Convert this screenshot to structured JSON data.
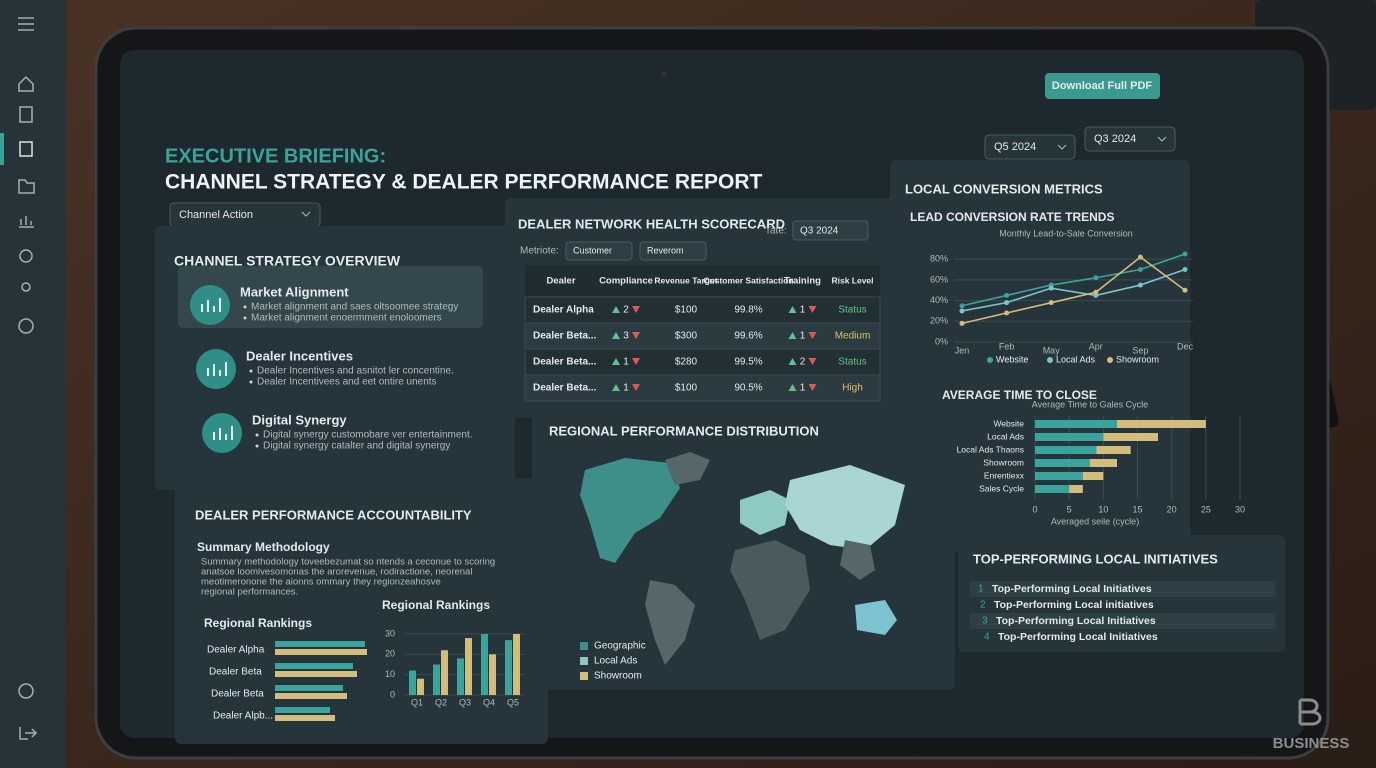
{
  "header": {
    "eyebrow": "EXECUTIVE BRIEFING:",
    "title": "CHANNEL STRATEGY & DEALER PERFORMANCE REPORT",
    "download": "Download Full PDF",
    "periods": [
      "Q5 2024",
      "Q3 2024"
    ],
    "filter": "Channel Action"
  },
  "strategy": {
    "title": "CHANNEL STRATEGY OVERVIEW",
    "items": [
      {
        "title": "Market Alignment",
        "bullets": [
          "Market alignment and saes oltsoomee strategy",
          "Market alignment enoermment enoloomers"
        ]
      },
      {
        "title": "Dealer Incentives",
        "bullets": [
          "Dealer Incentives and asnitot ler concentine.",
          "Dealer Incentivees and eet ontire unents"
        ]
      },
      {
        "title": "Digital Synergy",
        "bullets": [
          "Digital synergy customobare ver entertainment.",
          "Digital synergy catalter and digital synergy"
        ]
      }
    ]
  },
  "scorecard": {
    "title": "DEALER NETWORK HEALTH SCORECARD",
    "metric_label": "Metriote:",
    "metric_options": [
      "Customer",
      "Reverom"
    ],
    "date_label": "Tate:",
    "date": "Q3 2024",
    "columns": [
      "Dealer",
      "Compliance",
      "Revenue Target",
      "Customer Satisfaction",
      "Training",
      "Risk Level"
    ],
    "rows": [
      [
        "Dealer Alpha",
        2,
        "$100",
        "99.8%",
        1,
        "Status"
      ],
      [
        "Dealer Beta...",
        3,
        "$300",
        "99.6%",
        1,
        "Medium"
      ],
      [
        "Dealer Beta...",
        1,
        "$280",
        "99.5%",
        2,
        "Status"
      ],
      [
        "Dealer Beta...",
        1,
        "$100",
        "90.5%",
        1,
        "High"
      ]
    ],
    "risk_colors": [
      "#5fc28a",
      "#e0c060",
      "#5fc28a",
      "#e0c060"
    ]
  },
  "accountability": {
    "title": "DEALER PERFORMANCE ACCOUNTABILITY",
    "subtitle": "Summary Methodology",
    "text": [
      "Summary methodology toveebezumat so ntends a ceconue to scoring",
      "anatsoe loomivesomonas the arorevenue, rodiractione, neorenal",
      "meotimeronone the aionns ommary they regionzeahosve",
      "regional performances."
    ]
  },
  "map": {
    "title": "REGIONAL PERFORMANCE DISTRIBUTION",
    "legend": [
      {
        "name": "Geographic",
        "color": "#3e8f8a"
      },
      {
        "name": "Local Ads",
        "color": "#8fc9c4"
      },
      {
        "name": "Showroom",
        "color": "#d4bd7c"
      }
    ]
  },
  "conversion": {
    "title": "LOCAL CONVERSION METRICS"
  },
  "initiatives": {
    "title": "TOP-PERFORMING LOCAL INITIATIVES",
    "items": [
      {
        "rank": 1,
        "label": "Top-Performing Local Initiatives"
      },
      {
        "rank": 2,
        "label": "Top-Performing Local initiatives"
      },
      {
        "rank": 3,
        "label": "Top-Performing Local Initiatives"
      },
      {
        "rank": 4,
        "label": "Top-Performing Local Initiatives"
      }
    ]
  },
  "brand": "BUSINESS",
  "chart_data": [
    {
      "type": "line",
      "title": "LEAD CONVERSION RATE TRENDS",
      "subtitle": "Monthly Lead-to-Sale Conversion",
      "categories": [
        "Jen",
        "Feb",
        "May",
        "Apr",
        "Sep",
        "Dec"
      ],
      "series": [
        {
          "name": "Website",
          "color": "#3aa39b",
          "values": [
            35,
            45,
            55,
            62,
            70,
            85
          ]
        },
        {
          "name": "Local Ads",
          "color": "#7cc3d0",
          "values": [
            30,
            38,
            52,
            45,
            55,
            70
          ]
        },
        {
          "name": "Showroom",
          "color": "#d4bd7c",
          "values": [
            18,
            28,
            38,
            48,
            82,
            50
          ]
        }
      ],
      "ylim": [
        0,
        85
      ],
      "yticks": [
        {
          "value": 0,
          "label": "0%"
        },
        {
          "value": 20,
          "label": "20%"
        },
        {
          "value": 40,
          "label": "40%"
        },
        {
          "value": 60,
          "label": "60%"
        },
        {
          "value": 80,
          "label": "80%"
        }
      ],
      "grid": true
    },
    {
      "type": "stacked-hbar",
      "title": "AVERAGE TIME TO CLOSE",
      "subtitle": "Average Time to Gales Cycle",
      "xlabel": "Averaged seile (cycle)",
      "categories": [
        "Website",
        "Local Ads",
        "Local Ads Thaons",
        "Showroom",
        "Enrentiexx",
        "Sales Cycle"
      ],
      "series": [
        {
          "color": "#3aa39b",
          "values": [
            12,
            10,
            9,
            8,
            7,
            5
          ]
        },
        {
          "color": "#d4bd7c",
          "values": [
            13,
            8,
            5,
            4,
            3,
            2
          ]
        }
      ],
      "xlim": [
        0,
        30
      ],
      "xticks": [
        0,
        5,
        10,
        15,
        20,
        25,
        30
      ],
      "grid": true
    },
    {
      "type": "hbar",
      "title": "Regional Rankings",
      "categories": [
        "Dealer Alpha",
        "Dealer Beta",
        "Dealer Beta",
        "Dealer Alpb..."
      ],
      "series": [
        {
          "color": "#3aa39b",
          "values": [
            90,
            78,
            68,
            55
          ]
        },
        {
          "color": "#d4bd7c",
          "values": [
            92,
            82,
            72,
            60
          ]
        }
      ]
    },
    {
      "type": "bar",
      "title": "Regional Rankings",
      "categories": [
        "Q1",
        "Q2",
        "Q3",
        "Q4",
        "Q5"
      ],
      "series": [
        {
          "color": "#3aa39b",
          "values": [
            12,
            15,
            18,
            30,
            27
          ]
        },
        {
          "color": "#d4bd7c",
          "values": [
            8,
            22,
            28,
            20,
            30
          ]
        }
      ],
      "ylim": [
        0,
        30
      ],
      "yticks": [
        0,
        10,
        20,
        30
      ],
      "grid": true
    }
  ]
}
